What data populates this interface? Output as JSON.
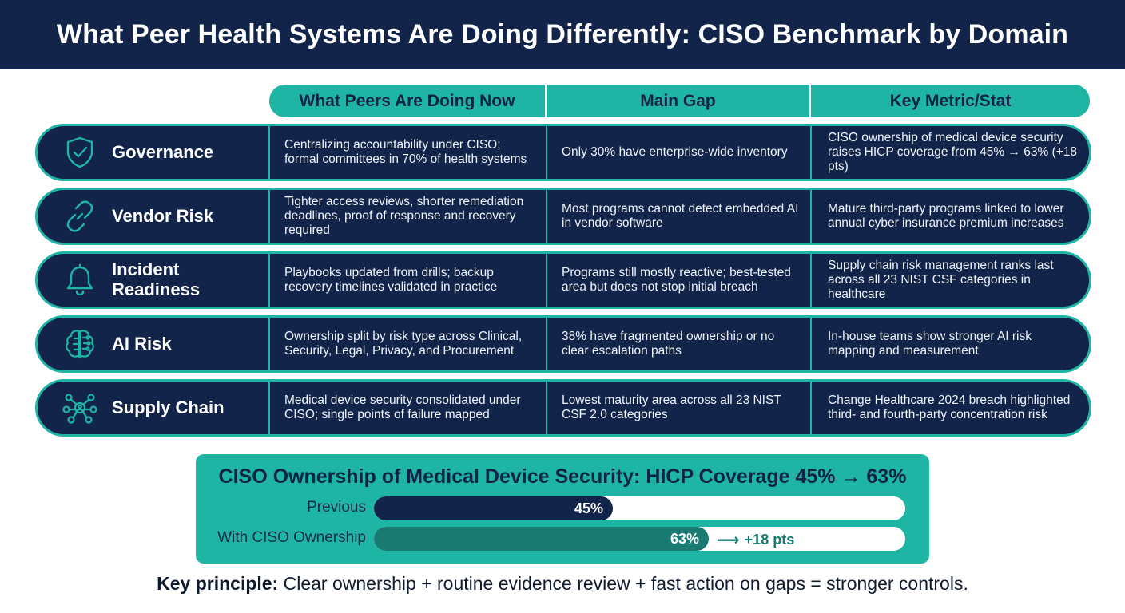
{
  "title": "What Peer Health Systems Are Doing Differently: CISO Benchmark by Domain",
  "columns": [
    "What Peers Are Doing Now",
    "Main Gap",
    "Key Metric/Stat"
  ],
  "rows": [
    {
      "domain": "Governance",
      "icon": "shield-check-icon",
      "peers": "Centralizing accountability under CISO; formal committees in 70% of health systems",
      "gap": "Only 30% have enterprise-wide inventory",
      "metric": "CISO ownership of medical device security raises HICP coverage from 45% → 63% (+18 pts)"
    },
    {
      "domain": "Vendor Risk",
      "icon": "link-icon",
      "peers": "Tighter access reviews, shorter remediation deadlines, proof of response and recovery required",
      "gap": "Most programs cannot detect embedded AI in vendor software",
      "metric": "Mature third-party programs linked to lower annual cyber insurance premium increases"
    },
    {
      "domain": "Incident Readiness",
      "icon": "bell-icon",
      "peers": "Playbooks updated from drills; backup recovery timelines validated in practice",
      "gap": "Programs still mostly reactive; best-tested area but does not stop initial breach",
      "metric": "Supply chain risk management ranks last across all 23 NIST CSF categories in healthcare"
    },
    {
      "domain": "AI Risk",
      "icon": "brain-circuit-icon",
      "peers": "Ownership split by risk type across Clinical, Security, Legal, Privacy, and Procurement",
      "gap": "38% have fragmented ownership or no clear escalation paths",
      "metric": "In-house teams show stronger AI risk mapping and measurement"
    },
    {
      "domain": "Supply Chain",
      "icon": "network-nodes-icon",
      "peers": "Medical device security consolidated under CISO; single points of failure mapped",
      "gap": "Lowest maturity area across all 23 NIST CSF 2.0 categories",
      "metric": "Change Healthcare 2024 breach highlighted third- and fourth-party concentration risk"
    }
  ],
  "chart_data": {
    "type": "bar",
    "title": "CISO Ownership of Medical Device Security: HICP Coverage 45% → 63%",
    "categories": [
      "Previous",
      "With CISO Ownership"
    ],
    "values": [
      45,
      63
    ],
    "value_labels": [
      "45%",
      "63%"
    ],
    "delta_label": "+18 pts",
    "xlim": [
      0,
      100
    ]
  },
  "principle": {
    "label": "Key principle:",
    "text": "Clear ownership + routine evidence review + fast action on gaps = stronger controls."
  },
  "colors": {
    "navy": "#13244a",
    "teal": "#1fb5a4",
    "dark_teal": "#187a70"
  }
}
